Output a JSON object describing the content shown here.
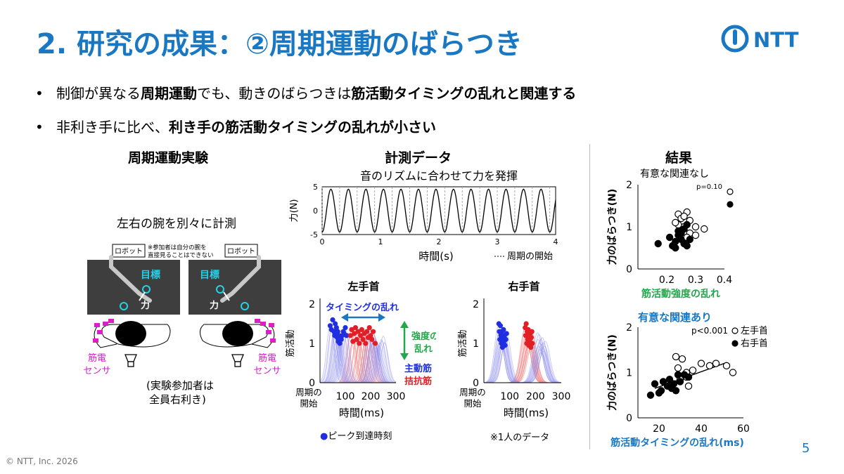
{
  "slide": {
    "title": "2. 研究の成果：②周期運動のばらつき",
    "logo_text": "NTT",
    "bullets": [
      {
        "parts": [
          {
            "t": "制御が異なる",
            "b": false
          },
          {
            "t": "周期運動",
            "b": true
          },
          {
            "t": "でも、動きのばらつきは",
            "b": false
          },
          {
            "t": "筋活動タイミングの乱れと関連する",
            "b": true
          }
        ]
      },
      {
        "parts": [
          {
            "t": "非利き手に比べ、",
            "b": false
          },
          {
            "t": "利き手の筋活動タイミングの乱れが小さい",
            "b": true
          }
        ]
      }
    ],
    "page_number": "5",
    "copyright": "© NTT, Inc.  2026"
  },
  "experiment": {
    "heading": "周期運動実験",
    "caption": "左右の腕を別々に計測",
    "robot_label": "ロボット",
    "note_line1": "※参加者は自分の腕を",
    "note_line2": "直接見ることはできない",
    "target_label": "目標",
    "force_label": "力",
    "sensor_label_1": "筋電",
    "sensor_label_2": "センサ",
    "footnote_line1": "(実験参加者は",
    "footnote_line2": "全員右利き)"
  },
  "measurement": {
    "heading": "計測データ",
    "force_title": "音のリズムに合わせて力を発揮",
    "left_title": "左手首",
    "right_title": "右手首",
    "timing_label": "タイミングの乱れ",
    "intensity_label_1": "強度の",
    "intensity_label_2": "乱れ",
    "agonist_label": "主動筋",
    "antagonist_label": "拮抗筋",
    "peak_legend": "ピーク到達時刻",
    "single_subject_note": "※1人のデータ",
    "period_start_label_1": "周期の",
    "period_start_label_2": "開始"
  },
  "results": {
    "heading": "結果",
    "top_annotation": "有意な関連なし",
    "bottom_annotation": "有意な関連あり"
  },
  "colors": {
    "title_blue": "#1a78c2",
    "green": "#21a84a",
    "agonist_blue": "#1f2fe0",
    "antagonist_red": "#e21f26",
    "sensor_magenta": "#d81fc8",
    "target_cyan": "#22d3e6",
    "panel_gray": "#3e3e3e"
  },
  "chart_data": [
    {
      "type": "line",
      "name_id": "force-time-series",
      "title": "音のリズムに合わせて力を発揮",
      "xlabel": "時間(s)",
      "ylabel": "力(N)",
      "xlim": [
        0,
        4
      ],
      "ylim": [
        -5,
        5
      ],
      "xticks": [
        "0",
        "1",
        "2",
        "3",
        "4"
      ],
      "yticks": [
        "-5",
        "0",
        "5"
      ],
      "period_s": 0.3,
      "amplitude": 4.5,
      "legend": "周期の開始"
    },
    {
      "type": "line",
      "name_id": "left-wrist-emg",
      "title": "左手首",
      "xlabel": "時間(ms)",
      "ylabel": "筋活動",
      "xlim": [
        0,
        300
      ],
      "ylim": [
        0,
        2
      ],
      "xticks": [
        "100",
        "200",
        "300"
      ],
      "yticks": [
        "0",
        "1",
        "2"
      ],
      "agonist_peaks": [
        [
          40,
          1.45
        ],
        [
          45,
          1.35
        ],
        [
          50,
          1.6
        ],
        [
          55,
          1.3
        ],
        [
          58,
          1.2
        ],
        [
          60,
          1.5
        ],
        [
          62,
          1.25
        ],
        [
          65,
          1.4
        ],
        [
          68,
          1.15
        ],
        [
          70,
          1.3
        ],
        [
          72,
          1.05
        ],
        [
          75,
          1.2
        ],
        [
          78,
          1.0
        ],
        [
          80,
          1.15
        ],
        [
          84,
          1.1
        ],
        [
          88,
          1.2
        ],
        [
          92,
          1.3
        ],
        [
          95,
          1.25
        ],
        [
          100,
          1.4
        ],
        [
          105,
          1.2
        ]
      ],
      "antagonist_peaks": [
        [
          120,
          1.2
        ],
        [
          125,
          1.35
        ],
        [
          130,
          1.05
        ],
        [
          135,
          1.25
        ],
        [
          140,
          1.4
        ],
        [
          145,
          1.1
        ],
        [
          150,
          1.3
        ],
        [
          155,
          1.0
        ],
        [
          160,
          1.2
        ],
        [
          165,
          1.35
        ],
        [
          170,
          1.1
        ],
        [
          175,
          1.25
        ],
        [
          180,
          1.0
        ],
        [
          185,
          1.3
        ],
        [
          190,
          1.15
        ],
        [
          195,
          1.4
        ],
        [
          200,
          1.2
        ],
        [
          205,
          1.1
        ],
        [
          210,
          1.3
        ],
        [
          218,
          1.0
        ]
      ]
    },
    {
      "type": "line",
      "name_id": "right-wrist-emg",
      "title": "右手首",
      "xlabel": "時間(ms)",
      "ylabel": "筋活動",
      "xlim": [
        0,
        300
      ],
      "ylim": [
        0,
        2
      ],
      "xticks": [
        "100",
        "200",
        "300"
      ],
      "yticks": [
        "0",
        "1",
        "2"
      ],
      "agonist_peaks": [
        [
          58,
          1.5
        ],
        [
          60,
          1.3
        ],
        [
          62,
          1.1
        ],
        [
          64,
          1.45
        ],
        [
          66,
          1.2
        ],
        [
          68,
          1.0
        ],
        [
          70,
          1.3
        ],
        [
          72,
          0.9
        ],
        [
          74,
          1.15
        ],
        [
          76,
          1.35
        ],
        [
          78,
          1.05
        ],
        [
          80,
          1.2
        ],
        [
          82,
          0.95
        ],
        [
          85,
          1.1
        ],
        [
          88,
          1.25
        ]
      ],
      "antagonist_peaks": [
        [
          160,
          1.4
        ],
        [
          162,
          1.2
        ],
        [
          164,
          1.5
        ],
        [
          166,
          1.0
        ],
        [
          168,
          1.3
        ],
        [
          170,
          1.1
        ],
        [
          172,
          1.35
        ],
        [
          174,
          0.95
        ],
        [
          176,
          1.2
        ],
        [
          178,
          1.05
        ],
        [
          180,
          1.25
        ],
        [
          182,
          0.9
        ],
        [
          184,
          1.15
        ],
        [
          186,
          1.3
        ],
        [
          188,
          1.0
        ]
      ]
    },
    {
      "type": "scatter",
      "name_id": "scatter-intensity",
      "xlabel": "筋活動強度の乱れ",
      "ylabel": "力のばらつき(N)",
      "xlim": [
        0.1,
        0.4
      ],
      "ylim": [
        0,
        2
      ],
      "xticks": [
        "0.2",
        "0.3",
        "0.4"
      ],
      "yticks": [
        "0",
        "1",
        "2"
      ],
      "p_value": "p=0.10",
      "regression": null,
      "series": [
        {
          "name": "左手首",
          "marker": "open",
          "points": [
            [
              0.24,
              1.3
            ],
            [
              0.27,
              1.35
            ],
            [
              0.25,
              1.2
            ],
            [
              0.28,
              1.15
            ],
            [
              0.26,
              1.0
            ],
            [
              0.24,
              1.05
            ],
            [
              0.3,
              1.0
            ],
            [
              0.33,
              0.95
            ],
            [
              0.28,
              0.85
            ],
            [
              0.25,
              0.9
            ],
            [
              0.27,
              0.75
            ],
            [
              0.3,
              0.8
            ],
            [
              0.23,
              1.1
            ],
            [
              0.26,
              1.25
            ]
          ]
        },
        {
          "name": "右手首",
          "marker": "filled",
          "points": [
            [
              0.17,
              0.6
            ],
            [
              0.21,
              0.75
            ],
            [
              0.22,
              0.55
            ],
            [
              0.23,
              0.65
            ],
            [
              0.24,
              0.8
            ],
            [
              0.25,
              0.7
            ],
            [
              0.26,
              0.6
            ],
            [
              0.24,
              0.9
            ],
            [
              0.26,
              0.95
            ],
            [
              0.27,
              1.05
            ],
            [
              0.25,
              0.85
            ],
            [
              0.28,
              0.7
            ],
            [
              0.23,
              0.5
            ],
            [
              0.27,
              0.55
            ]
          ]
        }
      ]
    },
    {
      "type": "scatter",
      "name_id": "scatter-timing",
      "xlabel": "筋活動タイミングの乱れ(ms)",
      "ylabel": "力のばらつき(N)",
      "xlim": [
        10,
        60
      ],
      "ylim": [
        0,
        2
      ],
      "xticks": [
        "20",
        "40",
        "60"
      ],
      "yticks": [
        "0",
        "1",
        "2"
      ],
      "p_value": "p<0.001",
      "regression": [
        [
          18,
          0.65
        ],
        [
          52,
          1.22
        ]
      ],
      "series": [
        {
          "name": "左手首",
          "marker": "open",
          "points": [
            [
              28,
              1.35
            ],
            [
              31,
              1.3
            ],
            [
              33,
              1.0
            ],
            [
              36,
              1.05
            ],
            [
              40,
              1.2
            ],
            [
              44,
              1.15
            ],
            [
              47,
              1.2
            ],
            [
              52,
              1.15
            ],
            [
              55,
              1.0
            ],
            [
              30,
              0.85
            ],
            [
              33,
              0.9
            ],
            [
              34,
              0.7
            ],
            [
              29,
              1.1
            ]
          ]
        },
        {
          "name": "右手首",
          "marker": "filled",
          "points": [
            [
              16,
              0.5
            ],
            [
              18,
              0.75
            ],
            [
              20,
              0.55
            ],
            [
              21,
              0.6
            ],
            [
              22,
              0.8
            ],
            [
              24,
              0.7
            ],
            [
              25,
              0.85
            ],
            [
              26,
              0.65
            ],
            [
              27,
              0.75
            ],
            [
              28,
              0.6
            ],
            [
              29,
              0.95
            ],
            [
              30,
              0.8
            ],
            [
              32,
              0.95
            ],
            [
              34,
              0.9
            ]
          ]
        }
      ]
    }
  ]
}
